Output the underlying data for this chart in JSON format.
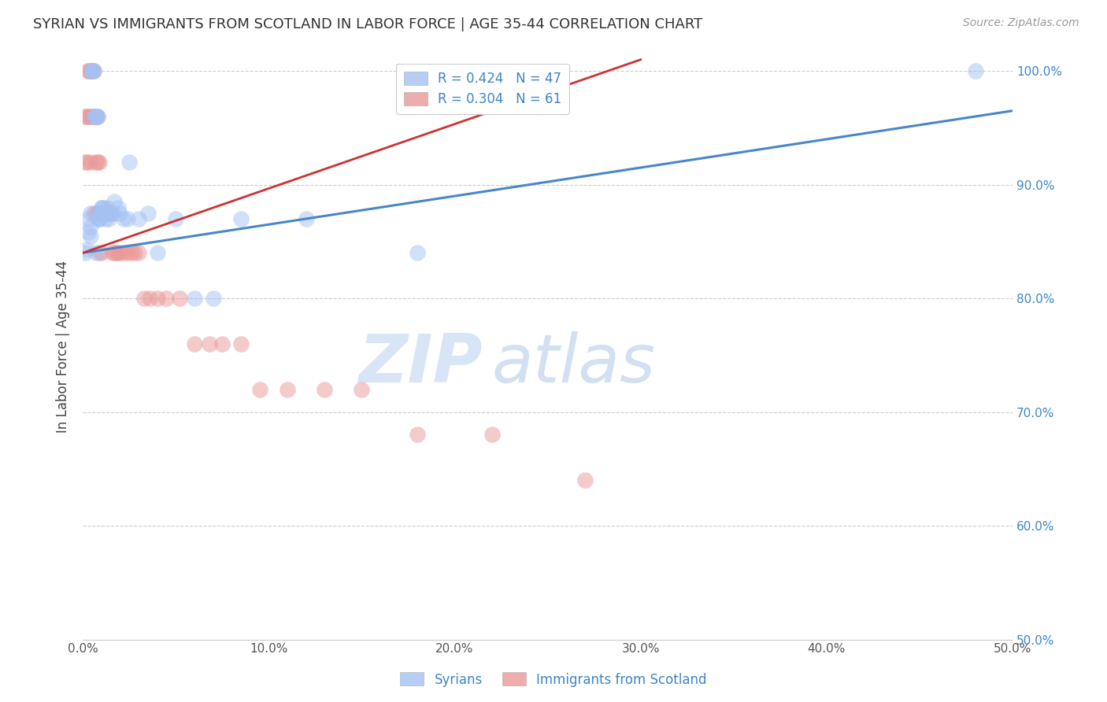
{
  "title": "SYRIAN VS IMMIGRANTS FROM SCOTLAND IN LABOR FORCE | AGE 35-44 CORRELATION CHART",
  "source": "Source: ZipAtlas.com",
  "ylabel": "In Labor Force | Age 35-44",
  "xlim": [
    0.0,
    0.5
  ],
  "ylim": [
    0.5,
    1.015
  ],
  "xticks": [
    0.0,
    0.1,
    0.2,
    0.3,
    0.4,
    0.5
  ],
  "xtick_labels": [
    "0.0%",
    "10.0%",
    "20.0%",
    "30.0%",
    "40.0%",
    "50.0%"
  ],
  "ytick_labels_right": [
    "50.0%",
    "60.0%",
    "70.0%",
    "80.0%",
    "90.0%",
    "100.0%"
  ],
  "yticks_right": [
    0.5,
    0.6,
    0.7,
    0.8,
    0.9,
    1.0
  ],
  "blue_color": "#a4c2f4",
  "pink_color": "#ea9999",
  "blue_fill_color": "#a4c2f4",
  "pink_fill_color": "#ea9999",
  "blue_line_color": "#4a86c8",
  "pink_line_color": "#cc3333",
  "legend_blue_text": "R = 0.424   N = 47",
  "legend_pink_text": "R = 0.304   N = 61",
  "legend_text_color": "#3d85c8",
  "title_color": "#333333",
  "source_color": "#999999",
  "watermark_zip": "ZIP",
  "watermark_atlas": "atlas",
  "syrians_x": [
    0.001,
    0.002,
    0.003,
    0.003,
    0.004,
    0.004,
    0.004,
    0.005,
    0.005,
    0.005,
    0.005,
    0.006,
    0.006,
    0.007,
    0.007,
    0.007,
    0.007,
    0.008,
    0.008,
    0.009,
    0.009,
    0.01,
    0.01,
    0.01,
    0.011,
    0.011,
    0.012,
    0.013,
    0.014,
    0.015,
    0.016,
    0.017,
    0.019,
    0.02,
    0.022,
    0.024,
    0.025,
    0.03,
    0.035,
    0.04,
    0.05,
    0.06,
    0.07,
    0.085,
    0.12,
    0.18,
    0.48
  ],
  "syrians_y": [
    0.84,
    0.843,
    0.858,
    0.87,
    0.855,
    0.863,
    0.875,
    1.0,
    1.0,
    1.0,
    1.0,
    1.0,
    0.96,
    0.96,
    0.96,
    0.96,
    0.84,
    0.96,
    0.87,
    0.87,
    0.87,
    0.875,
    0.88,
    0.88,
    0.875,
    0.88,
    0.87,
    0.88,
    0.87,
    0.875,
    0.875,
    0.885,
    0.88,
    0.875,
    0.87,
    0.87,
    0.92,
    0.87,
    0.875,
    0.84,
    0.87,
    0.8,
    0.8,
    0.87,
    0.87,
    0.84,
    1.0
  ],
  "scotland_x": [
    0.001,
    0.001,
    0.002,
    0.002,
    0.003,
    0.003,
    0.003,
    0.004,
    0.004,
    0.004,
    0.005,
    0.005,
    0.005,
    0.005,
    0.005,
    0.006,
    0.006,
    0.006,
    0.007,
    0.007,
    0.007,
    0.007,
    0.008,
    0.008,
    0.008,
    0.009,
    0.009,
    0.009,
    0.01,
    0.01,
    0.011,
    0.012,
    0.013,
    0.014,
    0.015,
    0.016,
    0.017,
    0.018,
    0.019,
    0.02,
    0.022,
    0.024,
    0.026,
    0.028,
    0.03,
    0.033,
    0.036,
    0.04,
    0.045,
    0.052,
    0.06,
    0.068,
    0.075,
    0.085,
    0.095,
    0.11,
    0.13,
    0.15,
    0.18,
    0.22,
    0.27
  ],
  "scotland_y": [
    0.96,
    0.92,
    0.96,
    0.92,
    1.0,
    1.0,
    0.96,
    1.0,
    0.96,
    0.92,
    1.0,
    1.0,
    1.0,
    1.0,
    0.96,
    1.0,
    0.96,
    0.875,
    0.96,
    0.96,
    0.92,
    0.875,
    0.96,
    0.92,
    0.875,
    0.92,
    0.875,
    0.84,
    0.875,
    0.84,
    0.875,
    0.875,
    0.875,
    0.875,
    0.875,
    0.84,
    0.84,
    0.84,
    0.84,
    0.84,
    0.84,
    0.84,
    0.84,
    0.84,
    0.84,
    0.8,
    0.8,
    0.8,
    0.8,
    0.8,
    0.76,
    0.76,
    0.76,
    0.76,
    0.72,
    0.72,
    0.72,
    0.72,
    0.68,
    0.68,
    0.64
  ],
  "blue_trendline_x": [
    0.0,
    0.5
  ],
  "blue_trendline_y": [
    0.84,
    0.965
  ],
  "pink_trendline_x": [
    0.0,
    0.3
  ],
  "pink_trendline_y": [
    0.84,
    1.01
  ]
}
